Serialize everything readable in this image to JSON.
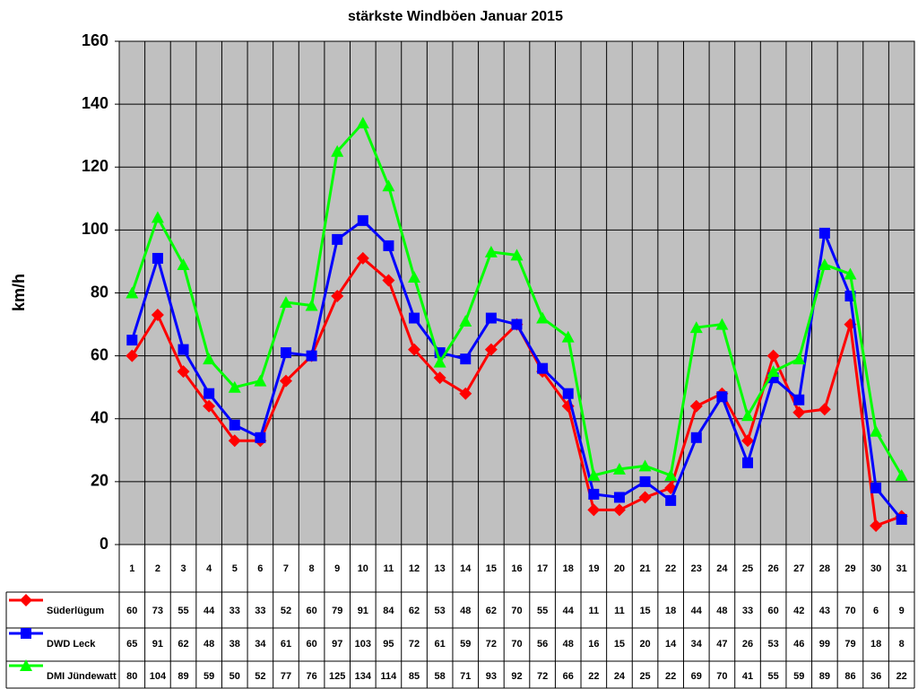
{
  "chart_data": {
    "type": "line",
    "title": "stärkste Windböen Januar 2015",
    "y_label": "km/h",
    "categories": [
      "1",
      "2",
      "3",
      "4",
      "5",
      "6",
      "7",
      "8",
      "9",
      "10",
      "11",
      "12",
      "13",
      "14",
      "15",
      "16",
      "17",
      "18",
      "19",
      "20",
      "21",
      "22",
      "23",
      "24",
      "25",
      "26",
      "27",
      "28",
      "29",
      "30",
      "31"
    ],
    "series": [
      {
        "name": "Süderlügum",
        "color": "#ff0000",
        "marker": "diamond",
        "values": [
          60,
          73,
          55,
          44,
          33,
          33,
          52,
          60,
          79,
          91,
          84,
          62,
          53,
          48,
          62,
          70,
          55,
          44,
          11,
          11,
          15,
          18,
          44,
          48,
          33,
          60,
          42,
          43,
          70,
          6,
          9
        ]
      },
      {
        "name": "DWD Leck",
        "color": "#0000ff",
        "marker": "square",
        "values": [
          65,
          91,
          62,
          48,
          38,
          34,
          61,
          60,
          97,
          103,
          95,
          72,
          61,
          59,
          72,
          70,
          56,
          48,
          16,
          15,
          20,
          14,
          34,
          47,
          26,
          53,
          46,
          99,
          79,
          18,
          8
        ]
      },
      {
        "name": "DMI Jündewatt",
        "color": "#00ff00",
        "marker": "triangle",
        "values": [
          80,
          104,
          89,
          59,
          50,
          52,
          77,
          76,
          125,
          134,
          114,
          85,
          58,
          71,
          93,
          92,
          72,
          66,
          22,
          24,
          25,
          22,
          69,
          70,
          41,
          55,
          59,
          89,
          86,
          36,
          22
        ]
      }
    ],
    "ylim": [
      0,
      160
    ],
    "yticks": [
      0,
      20,
      40,
      60,
      80,
      100,
      120,
      140,
      160
    ],
    "grid": true
  }
}
